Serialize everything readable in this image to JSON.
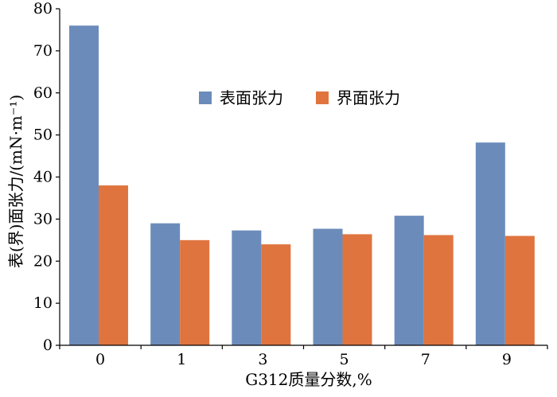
{
  "chart_data": {
    "type": "bar",
    "categories": [
      "0",
      "1",
      "3",
      "5",
      "7",
      "9"
    ],
    "series": [
      {
        "name": "表面张力",
        "values": [
          76,
          29,
          27.3,
          27.7,
          30.8,
          48.2
        ],
        "color": "#6b8cbb"
      },
      {
        "name": "界面张力",
        "values": [
          38,
          25,
          24,
          26.4,
          26.2,
          26
        ],
        "color": "#e0743f"
      }
    ],
    "xlabel": "G312质量分数,%",
    "ylabel": "表(界)面张力/(mN·m⁻¹)",
    "ylim": [
      0,
      80
    ],
    "yticks": [
      0,
      10,
      20,
      30,
      40,
      50,
      60,
      70,
      80
    ],
    "grid": false,
    "legend_position": "top-center"
  }
}
